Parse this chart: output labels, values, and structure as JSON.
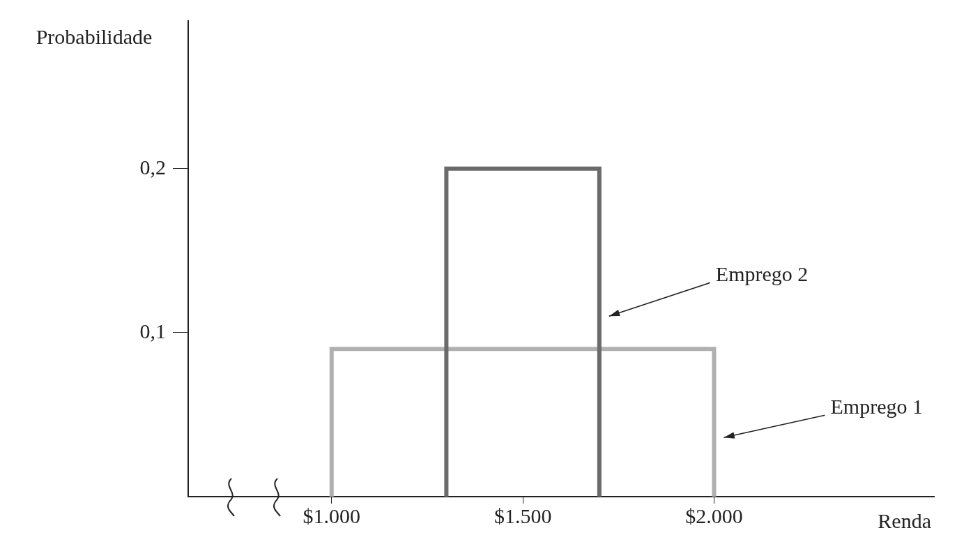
{
  "chart_data": {
    "type": "line",
    "xlabel": "Renda",
    "ylabel": "Probabilidade",
    "series": [
      {
        "name": "Emprego 2",
        "color": "#6a6a6a",
        "x": [
          1300,
          1300,
          1700,
          1700
        ],
        "values": [
          0,
          0.2,
          0.2,
          0
        ]
      },
      {
        "name": "Emprego 1",
        "color": "#b0b0b0",
        "x": [
          1000,
          1000,
          2000,
          2000
        ],
        "values": [
          0,
          0.09,
          0.09,
          0
        ]
      }
    ],
    "xlim": [
      625,
      2575
    ],
    "ylim": [
      0,
      0.29
    ],
    "xticks": [
      {
        "value": 1000,
        "label": "$1.000"
      },
      {
        "value": 1500,
        "label": "$1.500"
      },
      {
        "value": 2000,
        "label": "$2.000"
      }
    ],
    "yticks": [
      {
        "value": 0.1,
        "label": "0,1"
      },
      {
        "value": 0.2,
        "label": "0,2"
      }
    ],
    "grid": false,
    "legend": false,
    "marker": "none",
    "line_style": "solid"
  }
}
